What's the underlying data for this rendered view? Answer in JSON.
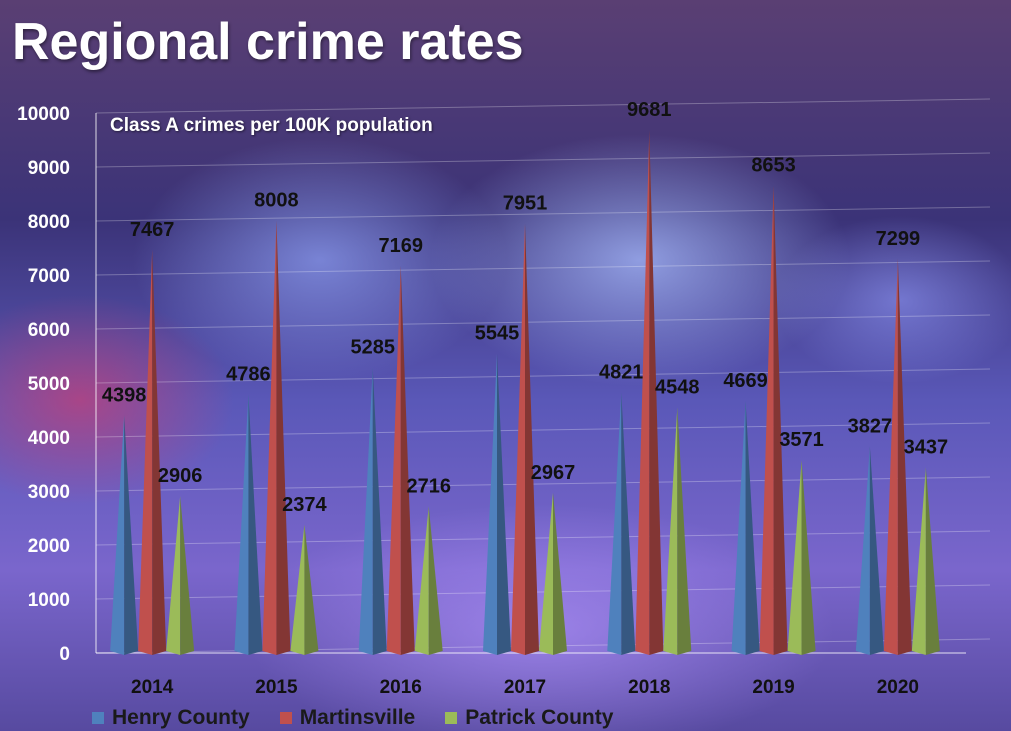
{
  "title": "Regional crime rates",
  "chart_data": {
    "type": "bar",
    "title": "Regional crime rates",
    "subtitle": "Class A crimes per 100K population",
    "categories": [
      "2014",
      "2015",
      "2016",
      "2017",
      "2018",
      "2019",
      "2020"
    ],
    "series": [
      {
        "name": "Henry County",
        "color": "#4f81bd",
        "values": [
          4398,
          4786,
          5285,
          5545,
          4821,
          4669,
          3827
        ]
      },
      {
        "name": "Martinsville",
        "color": "#c0504d",
        "values": [
          7467,
          8008,
          7169,
          7951,
          9681,
          8653,
          7299
        ]
      },
      {
        "name": "Patrick County",
        "color": "#9bbb59",
        "values": [
          2906,
          2374,
          2716,
          2967,
          4548,
          3571,
          3437
        ]
      }
    ],
    "ylim": [
      0,
      10000
    ],
    "yticks": [
      "0",
      "1000",
      "2000",
      "3000",
      "4000",
      "5000",
      "6000",
      "7000",
      "8000",
      "9000",
      "10000"
    ],
    "grid": true,
    "legend_position": "bottom-left",
    "bar_shape": "cone"
  }
}
